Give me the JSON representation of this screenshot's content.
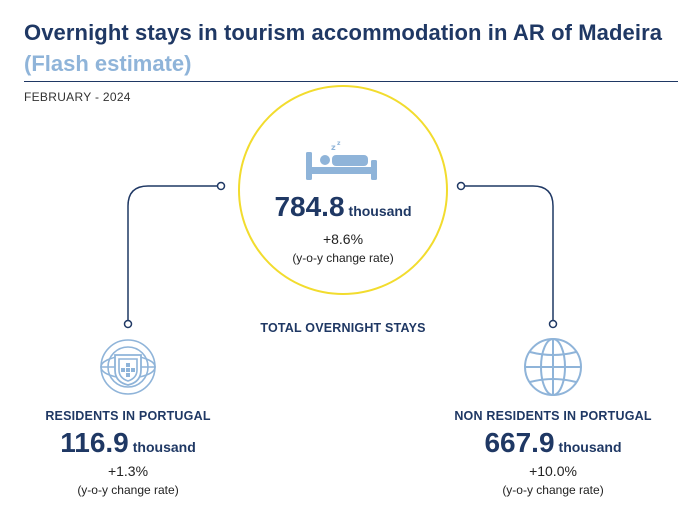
{
  "header": {
    "title": "Overnight stays in tourism accommodation in AR of Madeira",
    "subtitle": "(Flash estimate)",
    "period": "FEBRUARY - 2024"
  },
  "total": {
    "value": "784.8",
    "unit": "thousand",
    "change": "+8.6%",
    "change_note": "(y-o-y change rate)",
    "caption": "TOTAL OVERNIGHT STAYS",
    "icon": "bed-sleep-icon"
  },
  "residents": {
    "caption": "RESIDENTS IN PORTUGAL",
    "value": "116.9",
    "unit": "thousand",
    "change": "+1.3%",
    "change_note": "(y-o-y change rate)",
    "icon": "portugal-coat-of-arms-icon"
  },
  "non_residents": {
    "caption": "NON RESIDENTS IN PORTUGAL",
    "value": "667.9",
    "unit": "thousand",
    "change": "+10.0%",
    "change_note": "(y-o-y change rate)",
    "icon": "globe-icon"
  },
  "colors": {
    "navy": "#1f3864",
    "light_blue": "#8fb4d9",
    "circle_border": "#f2dc2e"
  }
}
